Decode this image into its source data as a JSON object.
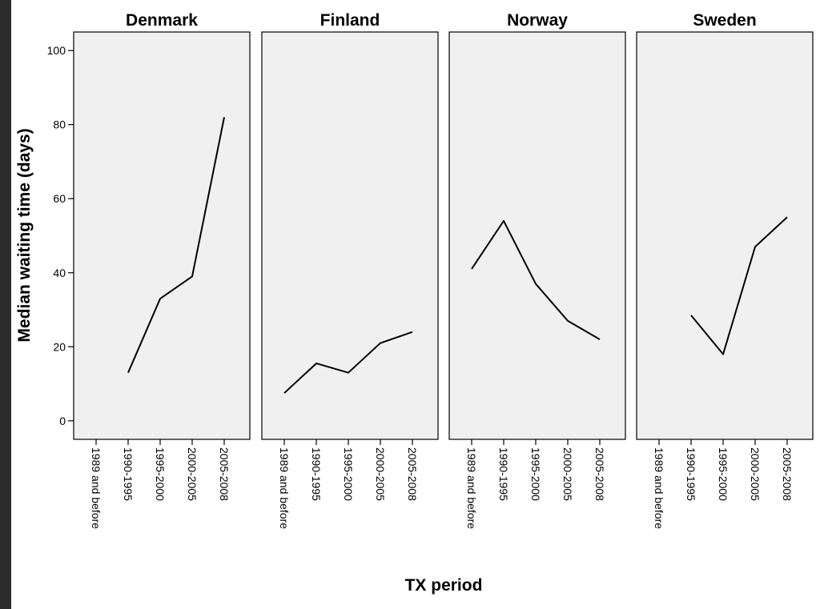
{
  "chart_data": {
    "type": "line",
    "layout": "facets-in-a-row",
    "xlabel": "TX period",
    "ylabel": "Median waiting time (days)",
    "ylim": [
      -5,
      105
    ],
    "yticks": [
      0,
      20,
      40,
      60,
      80,
      100
    ],
    "grid": false,
    "categories": [
      "1989 and before",
      "1990-1995",
      "1995-2000",
      "2000-2005",
      "2005-2008"
    ],
    "colors": {
      "panel_background": "#f0f0f0",
      "line": "#000000"
    },
    "facets": [
      {
        "title": "Denmark",
        "values": [
          null,
          13,
          33,
          39,
          82
        ]
      },
      {
        "title": "Finland",
        "values": [
          7.5,
          15.5,
          13,
          21,
          24
        ]
      },
      {
        "title": "Norway",
        "values": [
          41,
          54,
          37,
          27,
          22
        ]
      },
      {
        "title": "Sweden",
        "values": [
          null,
          28.5,
          18,
          47,
          55
        ]
      }
    ]
  }
}
